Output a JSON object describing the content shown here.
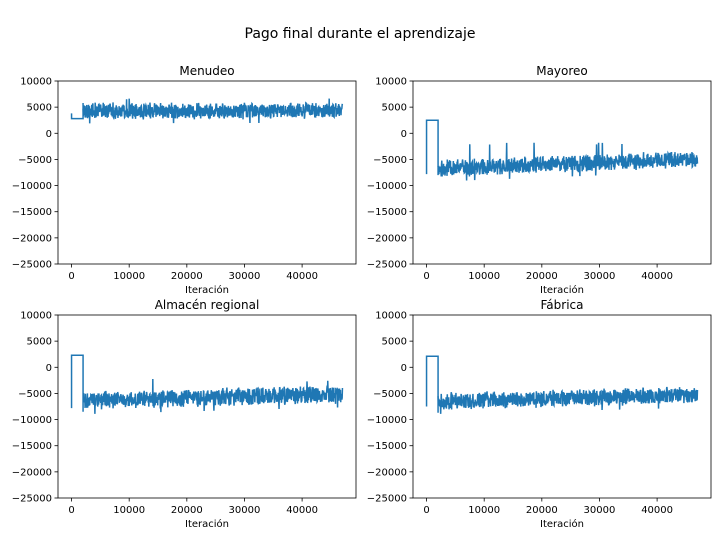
{
  "figure": {
    "suptitle": "Pago final durante el aprendizaje",
    "line_color": "#1f77b4"
  },
  "chart_data": [
    {
      "type": "line",
      "title": "Menudeo",
      "xlabel": "Iteración",
      "ylabel": "",
      "xlim": [
        -2350,
        49350
      ],
      "ylim": [
        -25000,
        10000
      ],
      "xticks": [
        0,
        10000,
        20000,
        30000,
        40000
      ],
      "yticks": [
        -25000,
        -20000,
        -15000,
        -10000,
        -5000,
        0,
        5000,
        10000
      ],
      "grid": false,
      "series": [
        {
          "initial_segment": [
            [
              0,
              3800
            ],
            [
              0,
              2800
            ],
            [
              2000,
              2800
            ],
            [
              2000,
              5800
            ]
          ],
          "noisy_band": {
            "x_start": 2000,
            "x_end": 47000,
            "center_start": 4200,
            "center_end": 4300,
            "amplitude": 1700,
            "spike_max": 7000
          }
        }
      ]
    },
    {
      "type": "line",
      "title": "Mayoreo",
      "xlabel": "Iteración",
      "ylabel": "",
      "xlim": [
        -2350,
        49350
      ],
      "ylim": [
        -25000,
        10000
      ],
      "xticks": [
        0,
        10000,
        20000,
        30000,
        40000
      ],
      "yticks": [
        -25000,
        -20000,
        -15000,
        -10000,
        -5000,
        0,
        5000,
        10000
      ],
      "grid": false,
      "series": [
        {
          "initial_segment": [
            [
              0,
              -7800
            ],
            [
              0,
              2500
            ],
            [
              2000,
              2500
            ],
            [
              2000,
              -8000
            ]
          ],
          "noisy_band": {
            "x_start": 2000,
            "x_end": 47000,
            "center_start": -6800,
            "center_end": -4900,
            "amplitude": 1800,
            "spike_max": -1800
          }
        }
      ]
    },
    {
      "type": "line",
      "title": "Almacén regional",
      "xlabel": "Iteración",
      "ylabel": "",
      "xlim": [
        -2350,
        49350
      ],
      "ylim": [
        -25000,
        10000
      ],
      "xticks": [
        0,
        10000,
        20000,
        30000,
        40000
      ],
      "yticks": [
        -25000,
        -20000,
        -15000,
        -10000,
        -5000,
        0,
        5000,
        10000
      ],
      "grid": false,
      "series": [
        {
          "initial_segment": [
            [
              0,
              -7800
            ],
            [
              0,
              2300
            ],
            [
              2000,
              2300
            ],
            [
              2000,
              -8500
            ]
          ],
          "noisy_band": {
            "x_start": 2000,
            "x_end": 47000,
            "center_start": -6400,
            "center_end": -5100,
            "amplitude": 1900,
            "spike_max": -2200
          }
        }
      ]
    },
    {
      "type": "line",
      "title": "Fábrica",
      "xlabel": "Iteración",
      "ylabel": "",
      "xlim": [
        -2350,
        49350
      ],
      "ylim": [
        -25000,
        10000
      ],
      "xticks": [
        0,
        10000,
        20000,
        30000,
        40000
      ],
      "yticks": [
        -25000,
        -20000,
        -15000,
        -10000,
        -5000,
        0,
        5000,
        10000
      ],
      "grid": false,
      "series": [
        {
          "initial_segment": [
            [
              0,
              -7500
            ],
            [
              0,
              2100
            ],
            [
              2000,
              2100
            ],
            [
              2000,
              -8700
            ]
          ],
          "noisy_band": {
            "x_start": 2000,
            "x_end": 47000,
            "center_start": -6500,
            "center_end": -5300,
            "amplitude": 1800,
            "spike_max": -2800
          }
        }
      ]
    }
  ]
}
